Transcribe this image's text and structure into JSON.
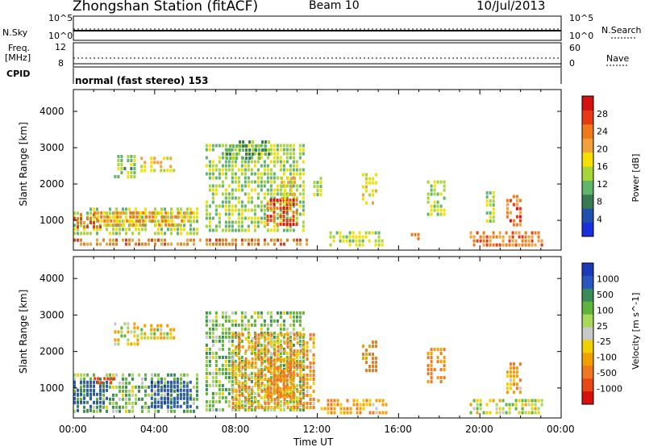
{
  "header": {
    "station": "Zhongshan Station (fitACF)",
    "beam": "Beam 10",
    "date": "10/Jul/2013"
  },
  "status_panel": {
    "left_label_top": "N.Sky",
    "left_label_mid_1": "Freq.",
    "left_label_mid_2": "[MHz]",
    "left_label_cpid": "CPID",
    "nsky_ticks": [
      "10^5",
      "10^0"
    ],
    "freq_ticks": [
      "12",
      "8"
    ],
    "right_label_top": "N.Search",
    "right_label_mid": "Nave",
    "nsearch_ticks": [
      "10^5",
      "10^0"
    ],
    "nave_ticks": [
      "60",
      "0"
    ],
    "cpid_text": "normal (fast stereo) 153"
  },
  "colors": {
    "power_scale": [
      "#1a2fdd",
      "#1f4fb0",
      "#3a7a50",
      "#5fb56a",
      "#a6d63a",
      "#f5e000",
      "#f2a23c",
      "#ee7a1a",
      "#e63a16",
      "#d41010"
    ],
    "velocity_scale": [
      "#1a3ab8",
      "#2a56c0",
      "#3a8a5a",
      "#60b43c",
      "#a8d85a",
      "#c8c8c8",
      "#f0d000",
      "#f0a000",
      "#f07820",
      "#e84818",
      "#d81010"
    ]
  },
  "chart_data": [
    {
      "type": "heatmap",
      "title": "Power",
      "xlabel": "Time UT",
      "ylabel": "Slant Range [km]",
      "xlim": [
        0,
        24
      ],
      "ylim": [
        180,
        4600
      ],
      "x_tick_labels": [
        "00:00",
        "04:00",
        "08:00",
        "12:00",
        "16:00",
        "20:00",
        "00:00"
      ],
      "y_tick_labels": [
        "1000",
        "2000",
        "3000",
        "4000"
      ],
      "colorbar": {
        "label": "Power [dB]",
        "ticks": [
          "4",
          "8",
          "12",
          "16",
          "20",
          "24",
          "28"
        ],
        "range": [
          0,
          30
        ]
      },
      "regions": [
        {
          "x": [
            0,
            11.8
          ],
          "y": [
            200,
            500
          ],
          "value": 22
        },
        {
          "x": [
            0,
            6.2
          ],
          "y": [
            500,
            1350
          ],
          "value": 14
        },
        {
          "x": [
            0,
            1.5
          ],
          "y": [
            700,
            1200
          ],
          "value": 24
        },
        {
          "x": [
            1,
            6
          ],
          "y": [
            750,
            1250
          ],
          "value": 20
        },
        {
          "x": [
            2.0,
            3.2
          ],
          "y": [
            2100,
            2800
          ],
          "value": 12
        },
        {
          "x": [
            3.3,
            5.2
          ],
          "y": [
            2300,
            2750
          ],
          "value": 16
        },
        {
          "x": [
            6.5,
            11.5
          ],
          "y": [
            600,
            3100
          ],
          "value": 13
        },
        {
          "x": [
            7.5,
            9.8
          ],
          "y": [
            2600,
            3200
          ],
          "value": 10
        },
        {
          "x": [
            9.5,
            11.2
          ],
          "y": [
            800,
            1600
          ],
          "value": 26
        },
        {
          "x": [
            10.2,
            11.0
          ],
          "y": [
            1400,
            2200
          ],
          "value": 18
        },
        {
          "x": [
            11.8,
            12.4
          ],
          "y": [
            1600,
            2200
          ],
          "value": 14
        },
        {
          "x": [
            12.6,
            15.3
          ],
          "y": [
            250,
            700
          ],
          "value": 14
        },
        {
          "x": [
            14.2,
            15.0
          ],
          "y": [
            1400,
            2300
          ],
          "value": 16
        },
        {
          "x": [
            16.6,
            17.2
          ],
          "y": [
            400,
            650
          ],
          "value": 22
        },
        {
          "x": [
            17.4,
            18.4
          ],
          "y": [
            1100,
            2100
          ],
          "value": 14
        },
        {
          "x": [
            19.5,
            23.3
          ],
          "y": [
            250,
            700
          ],
          "value": 22
        },
        {
          "x": [
            21.3,
            22.2
          ],
          "y": [
            800,
            1700
          ],
          "value": 24
        },
        {
          "x": [
            20.3,
            20.8
          ],
          "y": [
            900,
            1800
          ],
          "value": 14
        }
      ]
    },
    {
      "type": "heatmap",
      "title": "Velocity",
      "xlabel": "Time UT",
      "ylabel": "Slant Range [km]",
      "xlim": [
        0,
        24
      ],
      "ylim": [
        180,
        4600
      ],
      "x_tick_labels": [
        "00:00",
        "04:00",
        "08:00",
        "12:00",
        "16:00",
        "20:00",
        "00:00"
      ],
      "y_tick_labels": [
        "1000",
        "2000",
        "3000",
        "4000"
      ],
      "colorbar": {
        "label": "Velocity [m s^-1]",
        "ticks": [
          "1000",
          "500",
          "100",
          "25",
          "-25",
          "-100",
          "-500",
          "-1000"
        ]
      },
      "regions": [
        {
          "x": [
            0,
            6.2
          ],
          "y": [
            200,
            1400
          ],
          "value": 150
        },
        {
          "x": [
            0,
            1.8
          ],
          "y": [
            300,
            1200
          ],
          "value": 600
        },
        {
          "x": [
            3.8,
            6.0
          ],
          "y": [
            400,
            1200
          ],
          "value": 900
        },
        {
          "x": [
            1.0,
            2.2
          ],
          "y": [
            1000,
            1300
          ],
          "value": -800
        },
        {
          "x": [
            2.0,
            3.3
          ],
          "y": [
            2100,
            2800
          ],
          "value": 0
        },
        {
          "x": [
            3.3,
            5.2
          ],
          "y": [
            2300,
            2750
          ],
          "value": -50
        },
        {
          "x": [
            6.5,
            11.5
          ],
          "y": [
            300,
            3100
          ],
          "value": 120
        },
        {
          "x": [
            7.8,
            12.0
          ],
          "y": [
            300,
            2500
          ],
          "value": -200
        },
        {
          "x": [
            9.5,
            11.0
          ],
          "y": [
            600,
            1800
          ],
          "value": -300
        },
        {
          "x": [
            12.0,
            15.5
          ],
          "y": [
            250,
            700
          ],
          "value": -200
        },
        {
          "x": [
            14.2,
            15.0
          ],
          "y": [
            1400,
            2300
          ],
          "value": -300
        },
        {
          "x": [
            17.4,
            18.4
          ],
          "y": [
            1100,
            2100
          ],
          "value": -300
        },
        {
          "x": [
            19.5,
            23.3
          ],
          "y": [
            250,
            700
          ],
          "value": 50
        },
        {
          "x": [
            21.3,
            22.2
          ],
          "y": [
            800,
            1700
          ],
          "value": -200
        }
      ]
    }
  ]
}
